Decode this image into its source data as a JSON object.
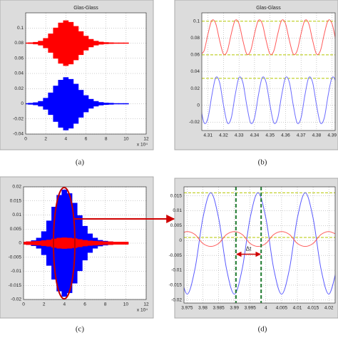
{
  "chart_data": [
    {
      "type": "area",
      "title": "Glas-Glass",
      "caption": "(a)",
      "x_multiplier": "x 10⁴",
      "grid": true,
      "x": [
        0,
        0.5,
        1,
        1.5,
        2,
        2.5,
        3,
        3.5,
        4,
        4.5,
        5,
        5.5,
        6,
        6.5,
        7,
        7.5,
        8,
        8.5,
        9,
        9.5,
        10
      ],
      "series": [
        {
          "color": "#ff0000",
          "values": [
            0.0806,
            0.0809,
            0.0815,
            0.083,
            0.0866,
            0.0926,
            0.1004,
            0.107,
            0.11,
            0.1079,
            0.1025,
            0.0956,
            0.0896,
            0.0854,
            0.083,
            0.0818,
            0.0812,
            0.0809,
            0.0806,
            0.0806,
            0.0806
          ],
          "lower": [
            0.0794,
            0.0791,
            0.0785,
            0.077,
            0.0734,
            0.0674,
            0.0596,
            0.053,
            0.05,
            0.0521,
            0.0575,
            0.0644,
            0.0704,
            0.0746,
            0.077,
            0.0782,
            0.0788,
            0.0791,
            0.0794,
            0.0794,
            0.0794
          ]
        },
        {
          "color": "#0000ff",
          "values": [
            0.0007,
            0.0011,
            0.0018,
            0.0035,
            0.0077,
            0.0147,
            0.0238,
            0.0315,
            0.035,
            0.0326,
            0.0263,
            0.0182,
            0.0112,
            0.0063,
            0.0035,
            0.0021,
            0.0014,
            0.0011,
            0.0007,
            0.0007,
            0.0007
          ],
          "lower": [
            -0.0007,
            -0.0011,
            -0.0018,
            -0.0035,
            -0.0077,
            -0.0147,
            -0.0238,
            -0.0315,
            -0.035,
            -0.0326,
            -0.0263,
            -0.0182,
            -0.0112,
            -0.0063,
            -0.0035,
            -0.0021,
            -0.0014,
            -0.0011,
            -0.0007,
            -0.0007,
            -0.0007
          ]
        }
      ],
      "xlim": [
        0,
        12
      ],
      "xticks": [
        0,
        2,
        4,
        6,
        8,
        10,
        12
      ],
      "ylim": [
        -0.04,
        0.12
      ],
      "yticks": [
        0.1,
        0.08,
        0.06,
        0.04,
        0.02,
        0,
        -0.02,
        -0.04
      ]
    },
    {
      "type": "line",
      "title": "Glas-Glass",
      "caption": "(b)",
      "grid": true,
      "x": [
        4.305,
        4.3075,
        4.31,
        4.3125,
        4.315,
        4.3175,
        4.32,
        4.3225,
        4.325,
        4.3275,
        4.33,
        4.3325,
        4.335,
        4.3375,
        4.34,
        4.3425,
        4.345,
        4.3475,
        4.35,
        4.3525,
        4.355,
        4.3575,
        4.36,
        4.3625,
        4.365,
        4.3675,
        4.37,
        4.3725,
        4.375,
        4.3775,
        4.38,
        4.3825,
        4.385,
        4.3875,
        4.39,
        4.3925,
        4.395
      ],
      "series": [
        {
          "color": "#ff5a5a",
          "values": [
            0.061,
            0.065,
            0.085,
            0.101,
            0.097,
            0.077,
            0.061,
            0.065,
            0.085,
            0.101,
            0.097,
            0.077,
            0.061,
            0.065,
            0.085,
            0.101,
            0.097,
            0.077,
            0.061,
            0.065,
            0.085,
            0.101,
            0.097,
            0.077,
            0.061,
            0.065,
            0.085,
            0.101,
            0.097,
            0.077,
            0.061,
            0.065,
            0.085,
            0.101,
            0.097,
            0.077,
            0.061
          ]
        },
        {
          "color": "#6b6bff",
          "values": [
            0,
            -0.021,
            -0.015,
            0.012,
            0.033,
            0.027,
            0,
            -0.021,
            -0.015,
            0.012,
            0.033,
            0.027,
            0,
            -0.021,
            -0.015,
            0.012,
            0.033,
            0.027,
            0,
            -0.021,
            -0.015,
            0.012,
            0.033,
            0.027,
            0,
            -0.021,
            -0.015,
            0.012,
            0.033,
            0.027,
            0,
            -0.021,
            -0.015,
            0.012,
            0.033,
            0.027,
            0
          ]
        }
      ],
      "hlines": [
        0.1,
        0.06,
        0.032
      ],
      "hline_color": "#b5c800",
      "xlim": [
        4.306,
        4.392
      ],
      "xticks": [
        4.31,
        4.32,
        4.33,
        4.34,
        4.35,
        4.36,
        4.37,
        4.38,
        4.39
      ],
      "ylim": [
        -0.03,
        0.11
      ],
      "yticks": [
        0.1,
        0.08,
        0.06,
        0.04,
        0.02,
        0,
        -0.02
      ]
    },
    {
      "type": "area",
      "caption": "(c)",
      "x_multiplier": "x 10⁴",
      "grid": true,
      "x": [
        0,
        0.5,
        1,
        1.5,
        2,
        2.5,
        3,
        3.5,
        4,
        4.5,
        5,
        5.5,
        6,
        6.5,
        7,
        7.5,
        8,
        8.5,
        9,
        9.5,
        10
      ],
      "series": [
        {
          "color": "#0000ff",
          "values": [
            0.0004,
            0.0006,
            0.001,
            0.0019,
            0.0042,
            0.008,
            0.0129,
            0.0171,
            0.019,
            0.0177,
            0.0143,
            0.0099,
            0.0061,
            0.0034,
            0.0019,
            0.0011,
            0.0008,
            0.0006,
            0.0004,
            0.0004,
            0.0004
          ],
          "lower": [
            -0.0004,
            -0.0006,
            -0.001,
            -0.0019,
            -0.0042,
            -0.008,
            -0.0129,
            -0.0171,
            -0.019,
            -0.0177,
            -0.0143,
            -0.0099,
            -0.0061,
            -0.0034,
            -0.0019,
            -0.0011,
            -0.0008,
            -0.0006,
            -0.0004,
            -0.0004,
            -0.0004
          ]
        },
        {
          "color": "#ff0000",
          "values": [
            0.0005,
            0.0006,
            0.0007,
            0.0008,
            0.001,
            0.0012,
            0.0016,
            0.0019,
            0.002,
            0.0019,
            0.0017,
            0.0014,
            0.0011,
            0.0009,
            0.0008,
            0.0007,
            0.0006,
            0.0006,
            0.0005,
            0.0005,
            0.0005
          ],
          "lower": [
            -0.0005,
            -0.0006,
            -0.0007,
            -0.0008,
            -0.001,
            -0.0012,
            -0.0016,
            -0.0019,
            -0.002,
            -0.0019,
            -0.0017,
            -0.0014,
            -0.0011,
            -0.0009,
            -0.0008,
            -0.0007,
            -0.0006,
            -0.0006,
            -0.0005,
            -0.0005,
            -0.0005
          ]
        }
      ],
      "xlim": [
        0,
        12
      ],
      "xticks": [
        0,
        2,
        4,
        6,
        8,
        10,
        12
      ],
      "ylim": [
        -0.02,
        0.02
      ],
      "yticks": [
        0.02,
        0.015,
        0.01,
        0.005,
        0,
        -0.005,
        -0.01,
        -0.015,
        -0.02
      ]
    },
    {
      "type": "line",
      "caption": "(d)",
      "grid": true,
      "annotation": "Δt",
      "x": [
        3.9725,
        3.975,
        3.9775,
        3.98,
        3.9825,
        3.985,
        3.9875,
        3.99,
        3.9925,
        3.995,
        3.9975,
        4,
        4.0025,
        4.005,
        4.0075,
        4.01,
        4.0125,
        4.015,
        4.0175,
        4.02,
        4.0225
      ],
      "series": [
        {
          "color": "#5a5aff",
          "values": [
            -0.0095,
            -0.018,
            -0.0095,
            0.0075,
            0.016,
            0.0075,
            -0.0095,
            -0.018,
            -0.0095,
            0.0075,
            0.016,
            0.0075,
            -0.0095,
            -0.018,
            -0.0095,
            0.0075,
            0.016,
            0.0075,
            -0.0095,
            -0.018,
            -0.0095
          ]
        },
        {
          "color": "#ff5a5a",
          "values": [
            0.002,
            0.003,
            0.002,
            -0.001,
            -0.002,
            -0.001,
            0.002,
            0.003,
            0.002,
            -0.001,
            -0.002,
            -0.001,
            0.002,
            0.003,
            0.002,
            -0.001,
            -0.002,
            -0.001,
            0.002,
            0.003,
            0.002
          ]
        }
      ],
      "hlines": [
        0.016,
        0.001
      ],
      "hline_color": "#b5c800",
      "vlines": [
        3.9905,
        3.9985
      ],
      "vline_color": "#1e7a2e",
      "xlim": [
        3.974,
        4.022
      ],
      "xticks": [
        3.975,
        3.98,
        3.985,
        3.99,
        3.995,
        4,
        4.005,
        4.01,
        4.015,
        4.02
      ],
      "ylim": [
        -0.021,
        0.018
      ],
      "yticks": [
        0.015,
        0.01,
        0.005,
        0,
        -0.005,
        -0.01,
        -0.015,
        -0.02
      ]
    }
  ]
}
